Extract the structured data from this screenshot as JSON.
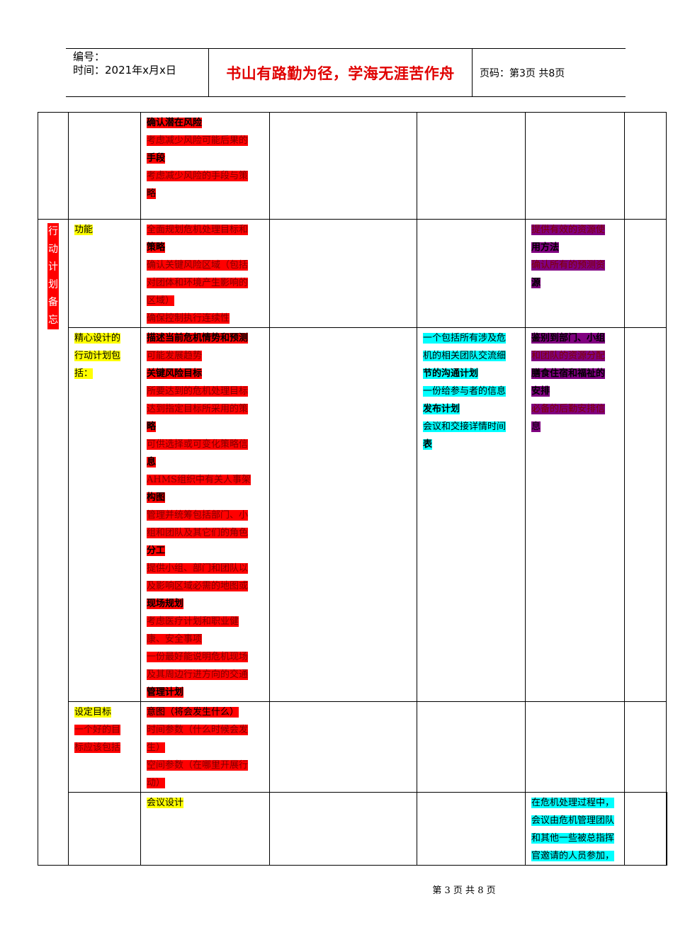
{
  "header": {
    "number_label": "编号：",
    "date_label": "时间：2021年x月x日",
    "motto": "书山有路勤为径，学海无涯苦作舟",
    "page_label": "页码：第3页  共8页"
  },
  "table": {
    "row1": {
      "col3": [
        "确认潜在风险",
        "考虑减少风险可能后果的",
        "手段",
        "考虑减少风险的手段与策",
        "略"
      ]
    },
    "section_label": [
      "行",
      "动",
      "计",
      "划",
      "备",
      "忘"
    ],
    "row2": {
      "item": "功能",
      "col3": [
        "全面规划危机处理目标和",
        "策略",
        "确认关键风险区域（包括",
        "对团体和环境产生影响的",
        "区域）",
        "确保控制执行连续性"
      ],
      "col6": [
        "提供有效的资源使",
        "用方法",
        "确认所有的预测资",
        "源"
      ]
    },
    "row3": {
      "item": [
        "精心设计的",
        "行动计划包",
        "括："
      ],
      "col3": [
        "描述当前危机情势和预测",
        "可能发展趋势",
        "关键风险目标",
        "所要达到的危机处理目标",
        "达到指定目标所采用的策",
        "略",
        "可供选择或可变化策略信",
        "息",
        "AHMS组织中有关人事架",
        "构图",
        "管理并统筹包括部门、小",
        "组和团队及其它们的角色",
        "分工",
        "提供小组、部门和团队以",
        "及影响区域必需的地图或",
        "现场规划",
        "考虑医疗计划和职业健",
        "康、安全事项",
        "一份最好能说明危机现场",
        "及其周边行进方向的交通",
        "管理计划"
      ],
      "col5": [
        "一个包括所有涉及危",
        "机的相关团队交流细",
        "节的沟通计划",
        "一份给参与者的信息",
        "发布计划",
        "会议和交接详情时间",
        "表"
      ],
      "col6": [
        "鉴别到部门、小组",
        "和团队的资源分配",
        "膳食住宿和福祉的",
        "安排",
        "必备的后勤安排信",
        "息"
      ]
    },
    "row4": {
      "item": [
        "设定目标",
        "一个好的目",
        "标应该包括"
      ],
      "col3": [
        "意图（将会发生什么）",
        "时间参数（什么时候会发",
        "生）",
        "空间参数（在哪里开展行",
        "动）"
      ]
    },
    "row5": {
      "item": "会议设计",
      "col5": [
        "在危机处理过程中，",
        "会议由危机管理团队",
        "和其他一些被总指挥",
        "官邀请的人员参加，"
      ]
    }
  },
  "footer": {
    "page": "第 3 页 共 8 页"
  }
}
